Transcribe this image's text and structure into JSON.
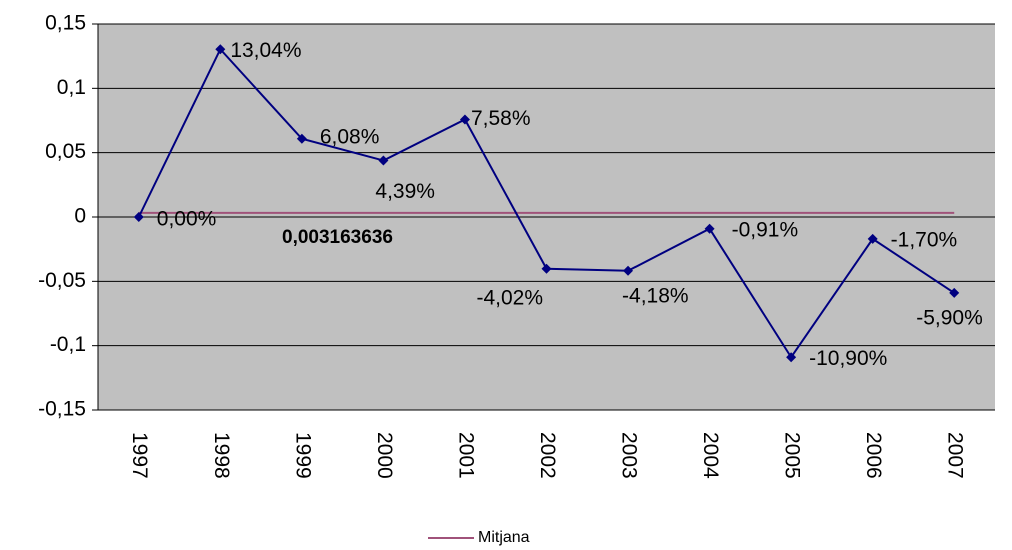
{
  "chart_data": {
    "type": "line",
    "categories": [
      "1997",
      "1998",
      "1999",
      "2000",
      "2001",
      "2002",
      "2003",
      "2004",
      "2005",
      "2006",
      "2007"
    ],
    "series": [
      {
        "color": "#000080",
        "values": [
          0,
          0.1304,
          0.0608,
          0.0439,
          0.0758,
          -0.0402,
          -0.0418,
          -0.0091,
          -0.109,
          -0.017,
          -0.059
        ],
        "value_labels": [
          "0,00%",
          "13,04%",
          "6,08%",
          "4,39%",
          "7,58%",
          "-4,02%",
          "-4,18%",
          "-0,91%",
          "-10,90%",
          "-1,70%",
          "-5,90%"
        ]
      }
    ],
    "mean": {
      "name": "Mitjana",
      "value": 0.003163636,
      "label": "0,003163636",
      "color": "#a0527a"
    },
    "ylim": [
      -0.15,
      0.15
    ],
    "yticks": [
      {
        "value": -0.15,
        "label": "-0,15"
      },
      {
        "value": -0.1,
        "label": "-0,1"
      },
      {
        "value": -0.05,
        "label": "-0,05"
      },
      0,
      {
        "value": 0.05,
        "label": "0,05"
      },
      {
        "value": 0.1,
        "label": "0,1"
      },
      {
        "value": 0.15,
        "label": "0,15"
      }
    ],
    "grid": true,
    "plot_background": "#c0c0c0"
  }
}
